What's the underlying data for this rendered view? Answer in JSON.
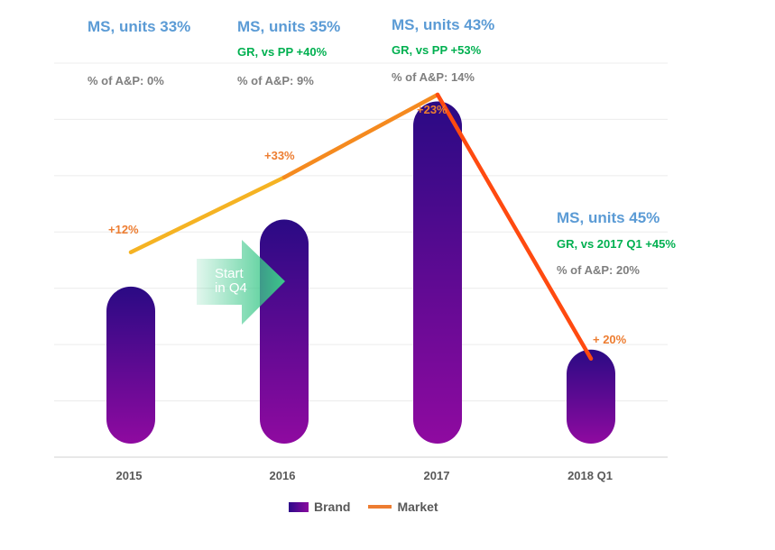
{
  "chart_data": {
    "type": "bar",
    "categories": [
      "2015",
      "2016",
      "2017",
      "2018 Q1"
    ],
    "series": [
      {
        "name": "Brand",
        "type": "bar",
        "values": [
          41,
          58,
          88,
          25
        ]
      },
      {
        "name": "Market",
        "type": "line",
        "values": [
          52,
          71,
          92,
          25
        ]
      }
    ],
    "ylim": [
      0,
      100
    ],
    "grid": true,
    "legend": "bottom-center",
    "annotations": {
      "ms_units": [
        "MS, units 33%",
        "MS, units 35%",
        "MS, units 43%",
        "MS, units 45%"
      ],
      "gr_vs_pp": [
        "",
        "GR, vs PP +40%",
        "GR, vs PP +53%",
        "GR, vs 2017 Q1 +45%"
      ],
      "ap_share": [
        "% of A&P: 0%",
        "% of A&P: 9%",
        "% of A&P: 14%",
        "% of A&P: 20%"
      ],
      "market_growth": [
        "+12%",
        "+33%",
        "+23%",
        "+ 20%"
      ]
    },
    "callout": {
      "text_line1": "Start",
      "text_line2": "in Q4"
    }
  },
  "legend_labels": {
    "brand": "Brand",
    "market": "Market"
  },
  "colors": {
    "bar_top": "#2a0a84",
    "bar_bottom": "#8f0aa0",
    "market_start": "#f5a623",
    "market_end": "#ff3b10",
    "ms": "#5b9bd5",
    "gr": "#00b050",
    "ap": "#7f7f7f",
    "growth": "#ed7d31",
    "arrow": "#3cc88a"
  }
}
